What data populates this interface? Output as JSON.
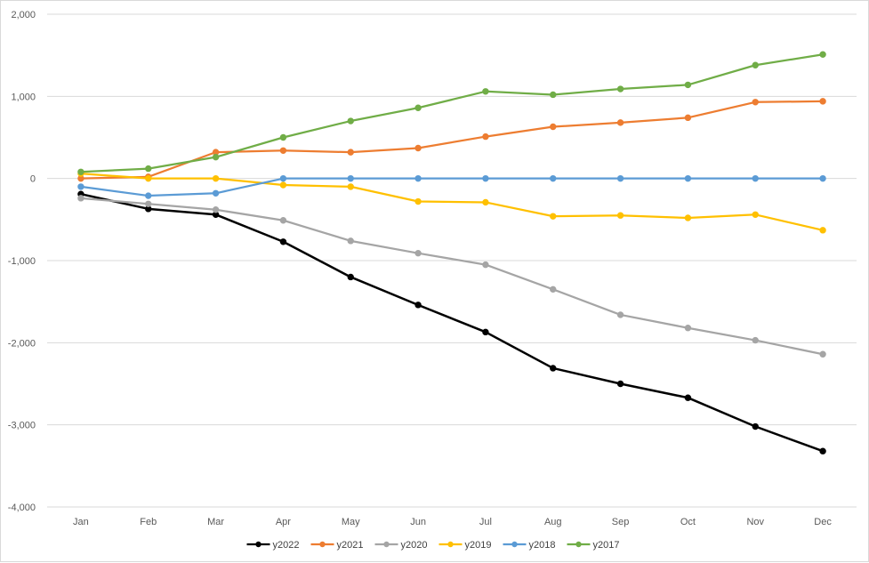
{
  "chart_data": {
    "type": "line",
    "title": "",
    "xlabel": "",
    "ylabel": "",
    "categories": [
      "Jan",
      "Feb",
      "Mar",
      "Apr",
      "May",
      "Jun",
      "Jul",
      "Aug",
      "Sep",
      "Oct",
      "Nov",
      "Dec"
    ],
    "ylim": [
      -4000,
      2000
    ],
    "yticks": [
      2000,
      1000,
      0,
      -1000,
      -2000,
      -3000,
      -4000
    ],
    "ytick_labels": [
      "2,000",
      "1,000",
      "0",
      "-1,000",
      "-2,000",
      "-3,000",
      "-4,000"
    ],
    "grid": true,
    "legend_position": "bottom",
    "series": [
      {
        "name": "y2022",
        "color": "#000000",
        "values": [
          -190,
          -370,
          -440,
          -770,
          -1200,
          -1540,
          -1870,
          -2310,
          -2500,
          -2670,
          -3020,
          -3320
        ]
      },
      {
        "name": "y2021",
        "color": "#ED7D31",
        "values": [
          0,
          20,
          320,
          340,
          320,
          370,
          510,
          630,
          680,
          740,
          930,
          940
        ]
      },
      {
        "name": "y2020",
        "color": "#A5A5A5",
        "values": [
          -240,
          -310,
          -380,
          -510,
          -760,
          -910,
          -1050,
          -1350,
          -1660,
          -1820,
          -1970,
          -2140
        ]
      },
      {
        "name": "y2019",
        "color": "#FFC000",
        "values": [
          60,
          0,
          0,
          -80,
          -100,
          -280,
          -290,
          -460,
          -450,
          -480,
          -440,
          -630
        ]
      },
      {
        "name": "y2018",
        "color": "#5B9BD5",
        "values": [
          -100,
          -210,
          -180,
          0,
          0,
          0,
          0,
          0,
          0,
          0,
          0,
          0
        ]
      },
      {
        "name": "y2017",
        "color": "#70AD47",
        "values": [
          80,
          120,
          260,
          500,
          700,
          860,
          1060,
          1020,
          1090,
          1140,
          1380,
          1510
        ]
      }
    ]
  }
}
